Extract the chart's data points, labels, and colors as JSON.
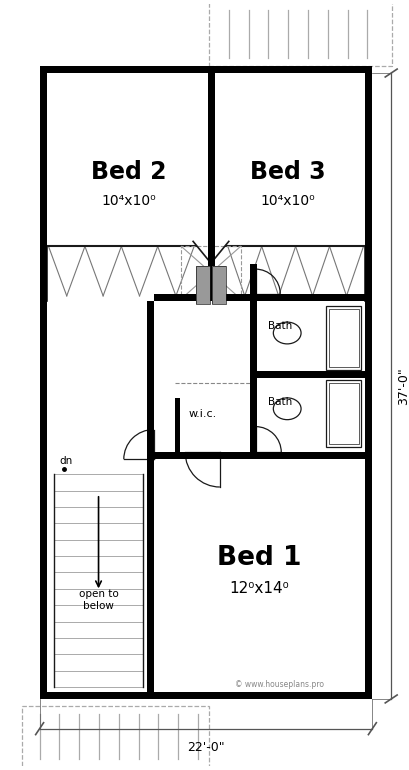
{
  "bg": "#ffffff",
  "wc": "#1a1a1a",
  "gc": "#888888",
  "gray_fill": "#999999",
  "rooms": {
    "bed2": "Bed 2",
    "bed2d": "10⁴x10⁰",
    "bed3": "Bed 3",
    "bed3d": "10⁴x10⁰",
    "bed1": "Bed 1",
    "bed1d": "12⁰x14⁰",
    "bath": "Bath",
    "wic": "w.i.c.",
    "dn": "dn",
    "open": "open to\nbelow"
  },
  "dim_w": "22'-0\"",
  "dim_h": "37'-0\"",
  "copy": "© www.houseplans.pro"
}
